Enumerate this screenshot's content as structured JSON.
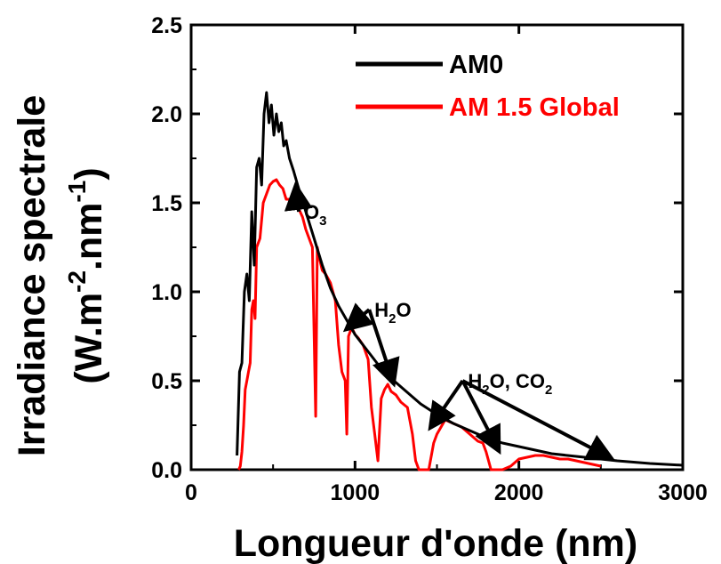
{
  "chart_data": {
    "type": "line",
    "xlabel": "Longueur d'onde (nm)",
    "ylabel_main": "Irradiance spectrale",
    "ylabel_unit": {
      "open": "(W.m",
      "sup1": "-2",
      "mid": ".nm",
      "sup2": "-1",
      "close": ")"
    },
    "xlim": [
      0,
      3000
    ],
    "ylim": [
      0,
      2.5
    ],
    "x_ticks": [
      0,
      1000,
      2000,
      3000
    ],
    "x_tick_labels": [
      "0",
      "1000",
      "2000",
      "3000"
    ],
    "y_ticks": [
      0,
      0.5,
      1.0,
      1.5,
      2.0,
      2.5
    ],
    "y_tick_labels": [
      "0.0",
      "0.5",
      "1.0",
      "1.5",
      "2.0",
      "2.5"
    ],
    "grid": false,
    "legend_position": "top-right",
    "series": [
      {
        "name": "AM0",
        "color": "#000000",
        "x": [
          280,
          295,
          310,
          325,
          340,
          355,
          370,
          385,
          400,
          415,
          430,
          445,
          460,
          475,
          490,
          505,
          520,
          535,
          550,
          565,
          580,
          600,
          625,
          650,
          700,
          750,
          800,
          850,
          900,
          950,
          1000,
          1050,
          1100,
          1150,
          1200,
          1300,
          1400,
          1500,
          1600,
          1700,
          1800,
          1900,
          2000,
          2100,
          2200,
          2400,
          2600,
          2800,
          3000
        ],
        "y": [
          0.08,
          0.55,
          0.6,
          1.0,
          1.1,
          0.95,
          1.45,
          1.15,
          1.7,
          1.75,
          1.6,
          2.0,
          2.12,
          1.95,
          2.05,
          1.88,
          2.0,
          1.9,
          1.95,
          1.82,
          1.85,
          1.75,
          1.68,
          1.6,
          1.45,
          1.3,
          1.15,
          1.02,
          0.92,
          0.84,
          0.76,
          0.7,
          0.64,
          0.58,
          0.53,
          0.45,
          0.37,
          0.31,
          0.26,
          0.22,
          0.18,
          0.15,
          0.13,
          0.11,
          0.09,
          0.07,
          0.05,
          0.035,
          0.025
        ]
      },
      {
        "name": "AM 1.5 Global",
        "color": "#ff0000",
        "x": [
          290,
          300,
          310,
          320,
          330,
          340,
          350,
          360,
          370,
          380,
          390,
          400,
          420,
          440,
          460,
          480,
          500,
          520,
          540,
          560,
          580,
          600,
          620,
          650,
          680,
          700,
          720,
          740,
          760,
          770,
          780,
          800,
          820,
          850,
          880,
          900,
          920,
          940,
          950,
          960,
          980,
          1000,
          1020,
          1050,
          1080,
          1100,
          1120,
          1140,
          1160,
          1180,
          1200,
          1220,
          1250,
          1280,
          1320,
          1350,
          1370,
          1390,
          1420,
          1450,
          1480,
          1500,
          1550,
          1600,
          1650,
          1700,
          1750,
          1780,
          1800,
          1830,
          1870,
          1900,
          1950,
          2000,
          2050,
          2100,
          2150,
          2200,
          2250,
          2300,
          2350,
          2400,
          2450,
          2500
        ],
        "y": [
          0.0,
          0.02,
          0.1,
          0.25,
          0.45,
          0.5,
          0.55,
          0.6,
          0.9,
          0.95,
          0.85,
          1.25,
          1.3,
          1.5,
          1.55,
          1.6,
          1.62,
          1.63,
          1.6,
          1.58,
          1.52,
          1.52,
          1.48,
          1.48,
          1.42,
          1.35,
          1.3,
          1.25,
          0.3,
          1.25,
          1.2,
          1.12,
          1.1,
          1.05,
          0.95,
          0.7,
          0.55,
          0.5,
          0.2,
          0.75,
          0.8,
          0.76,
          0.74,
          0.7,
          0.62,
          0.35,
          0.2,
          0.05,
          0.4,
          0.45,
          0.48,
          0.44,
          0.42,
          0.38,
          0.35,
          0.2,
          0.05,
          0.0,
          0.0,
          0.0,
          0.15,
          0.2,
          0.28,
          0.26,
          0.24,
          0.2,
          0.16,
          0.15,
          0.1,
          0.0,
          0.0,
          0.0,
          0.02,
          0.06,
          0.07,
          0.08,
          0.08,
          0.07,
          0.06,
          0.06,
          0.05,
          0.04,
          0.03,
          0.02
        ]
      }
    ],
    "annotations": [
      {
        "text": "O",
        "sub": "3",
        "tx": 700,
        "ty": 1.45,
        "ax": 640,
        "ay": 1.58
      },
      {
        "text": "H",
        "sub": "2",
        "suffix": "O",
        "tx": 1130,
        "ty": 0.9,
        "ax": 960,
        "ay": 0.8
      },
      {
        "text": "",
        "tx": 1130,
        "ty": 0.9,
        "ax": 1230,
        "ay": 0.5,
        "arrow_only": true
      },
      {
        "text": "H",
        "sub": "2",
        "suffix": "O, CO",
        "sub2": "2",
        "tx": 1700,
        "ty": 0.5,
        "ax": 1470,
        "ay": 0.25
      },
      {
        "text": "",
        "tx": 1700,
        "ty": 0.5,
        "ax": 1870,
        "ay": 0.12,
        "arrow_only": true
      },
      {
        "text": "",
        "tx": 1700,
        "ty": 0.5,
        "ax": 2550,
        "ay": 0.07,
        "arrow_only": true
      }
    ]
  }
}
